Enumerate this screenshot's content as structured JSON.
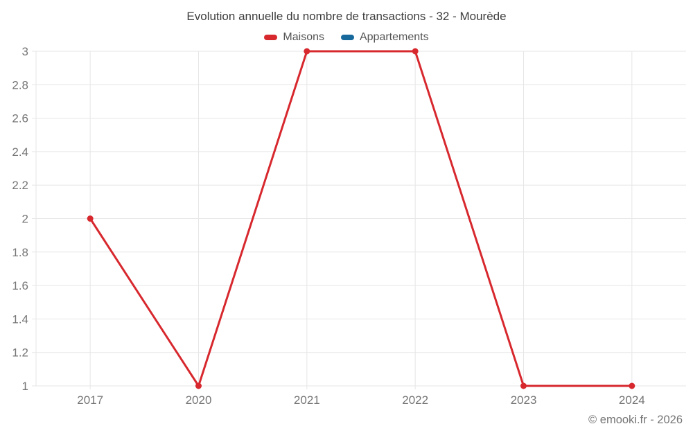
{
  "page": {
    "footer": "© emooki.fr - 2026"
  },
  "colors": {
    "background": "#ffffff",
    "title_text": "#3d3d3d",
    "legend_text": "#545454",
    "axis_text": "#757575",
    "gridline": "#e6e6e6",
    "footer_text": "#757575"
  },
  "chart_data": {
    "type": "line",
    "title": "Evolution annuelle du nombre de transactions - 32 - Mourède",
    "xlabel": "",
    "ylabel": "",
    "categories": [
      "2017",
      "2020",
      "2021",
      "2022",
      "2023",
      "2024"
    ],
    "series": [
      {
        "name": "Maisons",
        "color": "#d7282e",
        "values": [
          2,
          1,
          3,
          3,
          1,
          1
        ]
      },
      {
        "name": "Appartements",
        "color": "#17699c",
        "values": []
      }
    ],
    "ylim": [
      1,
      3
    ],
    "ytick_step": 0.2,
    "ytick_labels": [
      "1",
      "1.2",
      "1.4",
      "1.6",
      "1.8",
      "2",
      "2.2",
      "2.4",
      "2.6",
      "2.8",
      "3"
    ],
    "grid": true,
    "legend_position": "top"
  }
}
